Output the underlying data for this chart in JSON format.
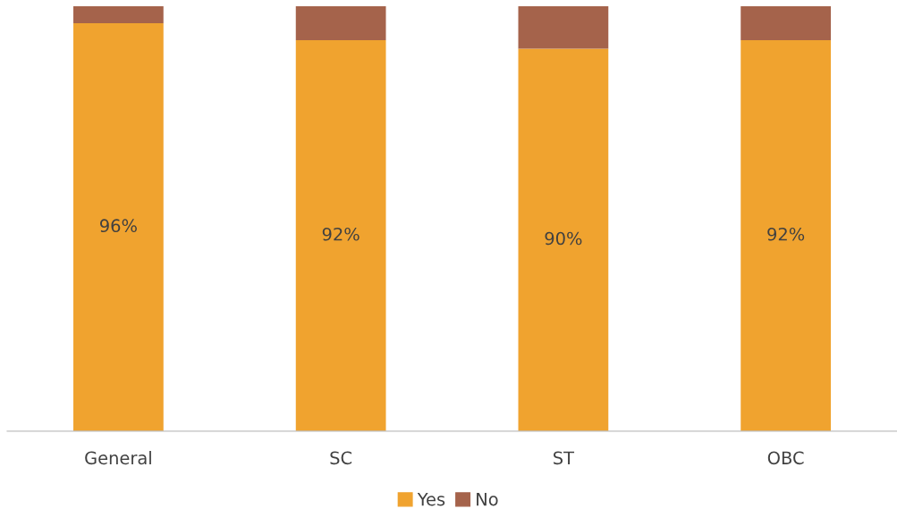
{
  "chart_data": {
    "type": "bar",
    "stacked": true,
    "categories": [
      "General",
      "SC",
      "ST",
      "OBC"
    ],
    "series": [
      {
        "name": "Yes",
        "color": "#f0a32f",
        "values": [
          96,
          92,
          90,
          92
        ],
        "value_labels": [
          "96%",
          "92%",
          "90%",
          "92%"
        ]
      },
      {
        "name": "No",
        "color": "#a5634b",
        "values": [
          4,
          8,
          10,
          8
        ]
      }
    ],
    "ylim": [
      0,
      100
    ],
    "tick_labels": "x",
    "grid": false,
    "legend": "bottom"
  }
}
